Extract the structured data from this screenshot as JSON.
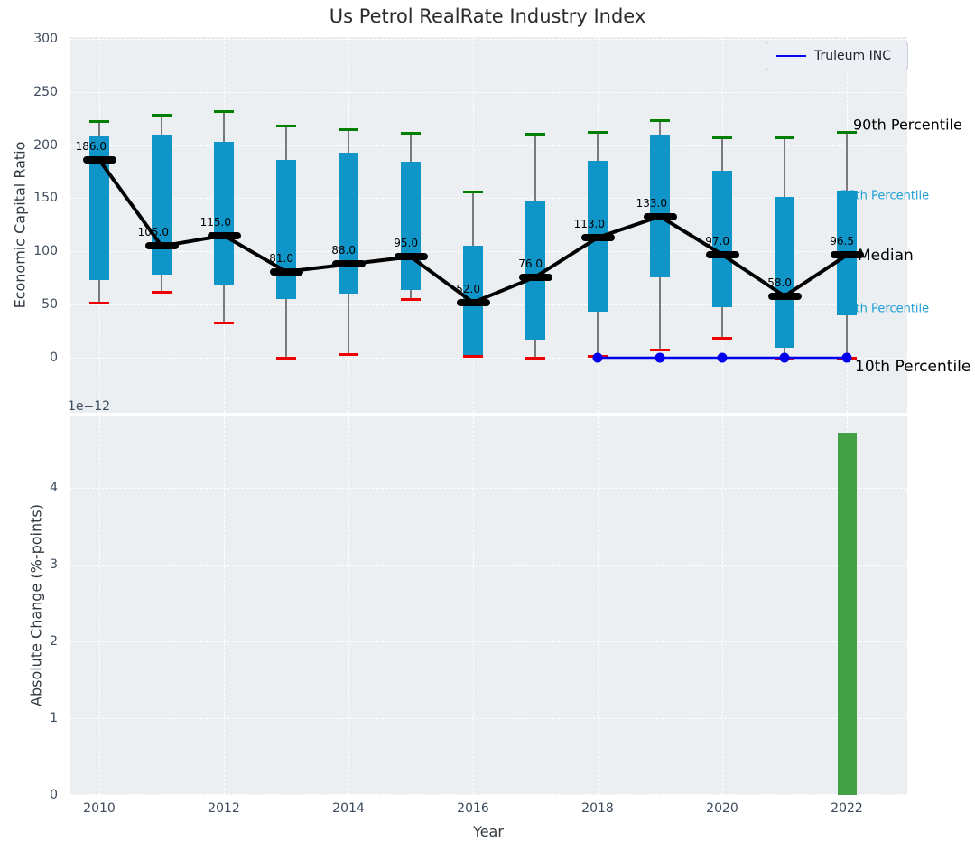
{
  "figure": {
    "title": "Us Petrol RealRate Industry Index"
  },
  "chart_data": [
    {
      "type": "box",
      "title": "Us Petrol RealRate Industry Index",
      "ylabel": "Economic Capital Ratio",
      "ylim": [
        -52,
        302
      ],
      "yticks": [
        0,
        50,
        100,
        150,
        200,
        250,
        300
      ],
      "grid": true,
      "categories": [
        2010,
        2011,
        2012,
        2013,
        2014,
        2015,
        2016,
        2017,
        2018,
        2019,
        2020,
        2021,
        2022
      ],
      "series": [
        {
          "name": "90th Percentile",
          "role": "p90",
          "color": "#007f00",
          "values": [
            222,
            228,
            232,
            218,
            215,
            211,
            156,
            210,
            212,
            223,
            207,
            207,
            212
          ]
        },
        {
          "name": "75th Percentile",
          "role": "p75",
          "color": "#1095c8",
          "values": [
            208,
            210,
            203,
            186,
            193,
            184,
            105,
            147,
            185,
            210,
            176,
            151,
            157
          ]
        },
        {
          "name": "Median",
          "role": "median",
          "color": "#000000",
          "values": [
            186,
            105,
            115,
            81,
            88,
            95,
            52,
            76,
            113,
            133,
            97,
            58,
            96.5
          ]
        },
        {
          "name": "25th Percentile",
          "role": "p25",
          "color": "#1095c8",
          "values": [
            73,
            78,
            68,
            55,
            60,
            64,
            2,
            17,
            43,
            76,
            48,
            9,
            40
          ]
        },
        {
          "name": "10th Percentile",
          "role": "p10",
          "color": "#ee0000",
          "values": [
            51,
            62,
            33,
            0,
            3,
            55,
            1,
            0,
            1,
            7,
            18,
            0,
            0
          ]
        }
      ],
      "median_labels": [
        "186.0",
        "105.0",
        "115.0",
        "81.0",
        "88.0",
        "95.0",
        "52.0",
        "76.0",
        "113.0",
        "133.0",
        "97.0",
        "58.0",
        "96.5"
      ],
      "overlay_line": {
        "name": "Truleum INC",
        "color": "#0000ee",
        "x": [
          2018,
          2019,
          2020,
          2021,
          2022
        ],
        "values": [
          0,
          0,
          0,
          0,
          0
        ]
      },
      "right_labels": [
        {
          "text": "90th Percentile",
          "color": "#000000",
          "size": 16
        },
        {
          "text": "75th Percentile",
          "color": "#1d9fd6",
          "size": 13
        },
        {
          "text": "Median",
          "color": "#000000",
          "size": 17
        },
        {
          "text": "25th Percentile",
          "color": "#1d9fd6",
          "size": 13
        },
        {
          "text": "10th Percentile",
          "color": "#000000",
          "size": 17
        }
      ],
      "legend": {
        "label": "Truleum INC",
        "position": "upper right"
      }
    },
    {
      "type": "bar",
      "ylabel": "Absolute Change (%-points)",
      "xlabel": "Year",
      "offset_label": "1e−12",
      "yticks": [
        0,
        1,
        2,
        3,
        4
      ],
      "ylim": [
        0,
        4.94
      ],
      "xticks": [
        2010,
        2012,
        2014,
        2016,
        2018,
        2020,
        2022
      ],
      "grid": true,
      "x": [
        2022
      ],
      "values": [
        4.72
      ],
      "value_unit": "1e-12",
      "bar_color": "#43a047"
    }
  ]
}
